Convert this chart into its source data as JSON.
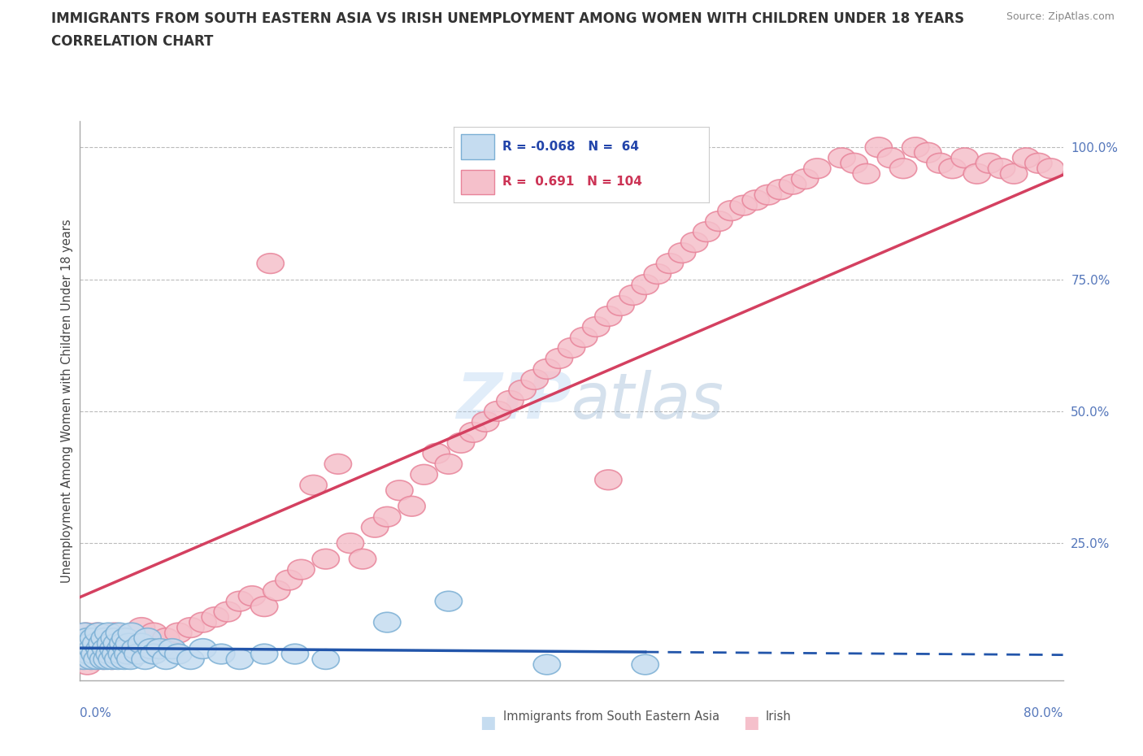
{
  "title": "IMMIGRANTS FROM SOUTH EASTERN ASIA VS IRISH UNEMPLOYMENT AMONG WOMEN WITH CHILDREN UNDER 18 YEARS",
  "subtitle": "CORRELATION CHART",
  "source": "Source: ZipAtlas.com",
  "ylabel": "Unemployment Among Women with Children Under 18 years",
  "legend_blue_R": -0.068,
  "legend_blue_N": 64,
  "legend_pink_R": 0.691,
  "legend_pink_N": 104,
  "blue_color": "#7BAFD4",
  "blue_face_color": "#C5DCF0",
  "pink_color": "#E8849A",
  "pink_face_color": "#F5C0CB",
  "blue_line_color": "#2255AA",
  "pink_line_color": "#D44060",
  "background_color": "#FFFFFF",
  "xlim": [
    0.0,
    0.8
  ],
  "ylim": [
    -0.01,
    1.05
  ],
  "right_ytick_color": "#5577BB",
  "xlabel_color": "#5577BB",
  "blue_scatter_x": [
    0.001,
    0.002,
    0.003,
    0.004,
    0.005,
    0.006,
    0.007,
    0.008,
    0.009,
    0.01,
    0.011,
    0.012,
    0.013,
    0.014,
    0.015,
    0.016,
    0.017,
    0.018,
    0.019,
    0.02,
    0.021,
    0.022,
    0.023,
    0.024,
    0.025,
    0.026,
    0.027,
    0.028,
    0.029,
    0.03,
    0.031,
    0.032,
    0.033,
    0.034,
    0.035,
    0.036,
    0.037,
    0.038,
    0.039,
    0.04,
    0.041,
    0.042,
    0.045,
    0.047,
    0.05,
    0.053,
    0.055,
    0.058,
    0.06,
    0.065,
    0.07,
    0.075,
    0.08,
    0.09,
    0.1,
    0.115,
    0.13,
    0.15,
    0.175,
    0.2,
    0.25,
    0.3,
    0.38,
    0.46
  ],
  "blue_scatter_y": [
    0.04,
    0.06,
    0.03,
    0.08,
    0.05,
    0.07,
    0.04,
    0.06,
    0.03,
    0.05,
    0.07,
    0.04,
    0.06,
    0.03,
    0.08,
    0.05,
    0.04,
    0.06,
    0.03,
    0.07,
    0.05,
    0.03,
    0.08,
    0.04,
    0.06,
    0.03,
    0.05,
    0.07,
    0.04,
    0.06,
    0.03,
    0.08,
    0.05,
    0.04,
    0.06,
    0.03,
    0.07,
    0.05,
    0.04,
    0.06,
    0.03,
    0.08,
    0.05,
    0.04,
    0.06,
    0.03,
    0.07,
    0.05,
    0.04,
    0.05,
    0.03,
    0.05,
    0.04,
    0.03,
    0.05,
    0.04,
    0.03,
    0.04,
    0.04,
    0.03,
    0.1,
    0.14,
    0.02,
    0.02
  ],
  "pink_scatter_x": [
    0.001,
    0.002,
    0.003,
    0.004,
    0.005,
    0.006,
    0.007,
    0.008,
    0.009,
    0.01,
    0.011,
    0.012,
    0.013,
    0.014,
    0.015,
    0.016,
    0.017,
    0.018,
    0.019,
    0.02,
    0.022,
    0.024,
    0.026,
    0.028,
    0.03,
    0.035,
    0.04,
    0.045,
    0.05,
    0.06,
    0.07,
    0.08,
    0.09,
    0.1,
    0.11,
    0.12,
    0.13,
    0.14,
    0.15,
    0.16,
    0.17,
    0.18,
    0.2,
    0.22,
    0.23,
    0.24,
    0.25,
    0.26,
    0.27,
    0.28,
    0.29,
    0.3,
    0.31,
    0.32,
    0.33,
    0.34,
    0.35,
    0.36,
    0.37,
    0.38,
    0.39,
    0.4,
    0.41,
    0.42,
    0.43,
    0.44,
    0.45,
    0.46,
    0.47,
    0.48,
    0.49,
    0.5,
    0.51,
    0.52,
    0.53,
    0.54,
    0.55,
    0.56,
    0.57,
    0.58,
    0.59,
    0.6,
    0.62,
    0.63,
    0.64,
    0.65,
    0.66,
    0.67,
    0.68,
    0.69,
    0.7,
    0.71,
    0.72,
    0.73,
    0.74,
    0.75,
    0.76,
    0.77,
    0.78,
    0.79,
    0.155,
    0.19,
    0.21,
    0.43
  ],
  "pink_scatter_y": [
    0.05,
    0.03,
    0.07,
    0.04,
    0.08,
    0.02,
    0.06,
    0.05,
    0.03,
    0.07,
    0.04,
    0.06,
    0.03,
    0.08,
    0.05,
    0.07,
    0.04,
    0.06,
    0.03,
    0.05,
    0.04,
    0.06,
    0.03,
    0.08,
    0.05,
    0.07,
    0.04,
    0.06,
    0.09,
    0.08,
    0.07,
    0.08,
    0.09,
    0.1,
    0.11,
    0.12,
    0.14,
    0.15,
    0.13,
    0.16,
    0.18,
    0.2,
    0.22,
    0.25,
    0.22,
    0.28,
    0.3,
    0.35,
    0.32,
    0.38,
    0.42,
    0.4,
    0.44,
    0.46,
    0.48,
    0.5,
    0.52,
    0.54,
    0.56,
    0.58,
    0.6,
    0.62,
    0.64,
    0.66,
    0.68,
    0.7,
    0.72,
    0.74,
    0.76,
    0.78,
    0.8,
    0.82,
    0.84,
    0.86,
    0.88,
    0.89,
    0.9,
    0.91,
    0.92,
    0.93,
    0.94,
    0.96,
    0.98,
    0.97,
    0.95,
    1.0,
    0.98,
    0.96,
    1.0,
    0.99,
    0.97,
    0.96,
    0.98,
    0.95,
    0.97,
    0.96,
    0.95,
    0.98,
    0.97,
    0.96,
    0.78,
    0.36,
    0.4,
    0.37
  ]
}
